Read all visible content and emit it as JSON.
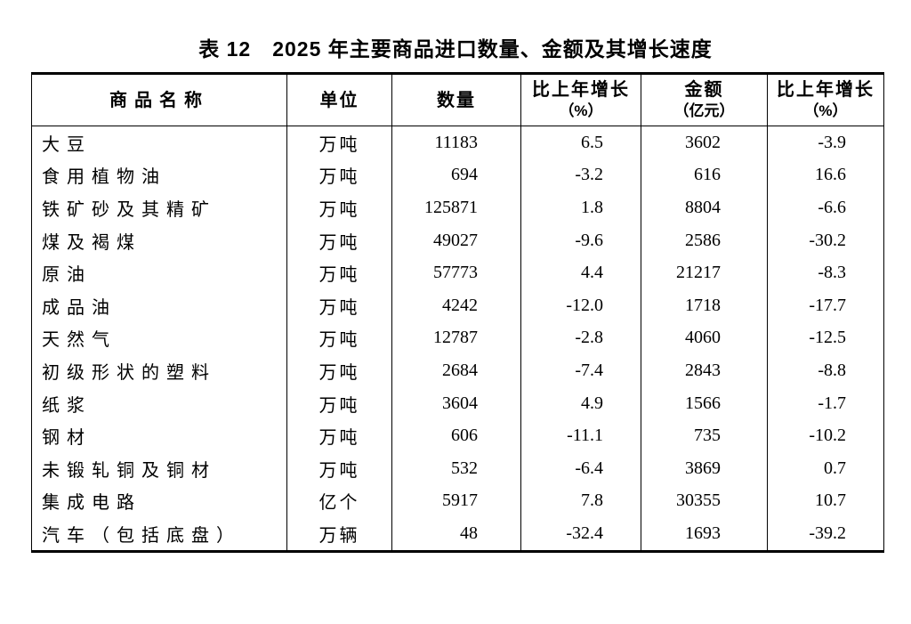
{
  "page": {
    "background_color": "#ffffff",
    "text_color": "#000000"
  },
  "table": {
    "title": "表 12　2025 年主要商品进口数量、金额及其增长速度",
    "columns": [
      {
        "label": "商品名称"
      },
      {
        "label": "单位"
      },
      {
        "label": "数量"
      },
      {
        "label": "比上年增长",
        "sub": "（%）"
      },
      {
        "label": "金额",
        "sub": "（亿元）"
      },
      {
        "label": "比上年增长",
        "sub": "（%）"
      }
    ],
    "rows": [
      {
        "name": "大豆",
        "unit": "万吨",
        "quantity": "11183",
        "quantity_growth": "6.5",
        "amount": "3602",
        "amount_growth": "-3.9"
      },
      {
        "name": "食用植物油",
        "unit": "万吨",
        "quantity": "694",
        "quantity_growth": "-3.2",
        "amount": "616",
        "amount_growth": "16.6"
      },
      {
        "name": "铁矿砂及其精矿",
        "unit": "万吨",
        "quantity": "125871",
        "quantity_growth": "1.8",
        "amount": "8804",
        "amount_growth": "-6.6"
      },
      {
        "name": "煤及褐煤",
        "unit": "万吨",
        "quantity": "49027",
        "quantity_growth": "-9.6",
        "amount": "2586",
        "amount_growth": "-30.2"
      },
      {
        "name": "原油",
        "unit": "万吨",
        "quantity": "57773",
        "quantity_growth": "4.4",
        "amount": "21217",
        "amount_growth": "-8.3"
      },
      {
        "name": "成品油",
        "unit": "万吨",
        "quantity": "4242",
        "quantity_growth": "-12.0",
        "amount": "1718",
        "amount_growth": "-17.7"
      },
      {
        "name": "天然气",
        "unit": "万吨",
        "quantity": "12787",
        "quantity_growth": "-2.8",
        "amount": "4060",
        "amount_growth": "-12.5"
      },
      {
        "name": "初级形状的塑料",
        "unit": "万吨",
        "quantity": "2684",
        "quantity_growth": "-7.4",
        "amount": "2843",
        "amount_growth": "-8.8"
      },
      {
        "name": "纸浆",
        "unit": "万吨",
        "quantity": "3604",
        "quantity_growth": "4.9",
        "amount": "1566",
        "amount_growth": "-1.7"
      },
      {
        "name": "钢材",
        "unit": "万吨",
        "quantity": "606",
        "quantity_growth": "-11.1",
        "amount": "735",
        "amount_growth": "-10.2"
      },
      {
        "name": "未锻轧铜及铜材",
        "unit": "万吨",
        "quantity": "532",
        "quantity_growth": "-6.4",
        "amount": "3869",
        "amount_growth": "0.7"
      },
      {
        "name": "集成电路",
        "unit": "亿个",
        "quantity": "5917",
        "quantity_growth": "7.8",
        "amount": "30355",
        "amount_growth": "10.7"
      },
      {
        "name": "汽车（包括底盘）",
        "unit": "万辆",
        "quantity": "48",
        "quantity_growth": "-32.4",
        "amount": "1693",
        "amount_growth": "-39.2"
      }
    ]
  },
  "chart_data": {
    "type": "table",
    "title": "表 12　2025 年主要商品进口数量、金额及其增长速度",
    "columns": [
      "商品名称",
      "单位",
      "数量",
      "比上年增长（%）",
      "金额（亿元）",
      "比上年增长（%）"
    ],
    "rows": [
      [
        "大豆",
        "万吨",
        11183,
        6.5,
        3602,
        -3.9
      ],
      [
        "食用植物油",
        "万吨",
        694,
        -3.2,
        616,
        16.6
      ],
      [
        "铁矿砂及其精矿",
        "万吨",
        125871,
        1.8,
        8804,
        -6.6
      ],
      [
        "煤及褐煤",
        "万吨",
        49027,
        -9.6,
        2586,
        -30.2
      ],
      [
        "原油",
        "万吨",
        57773,
        4.4,
        21217,
        -8.3
      ],
      [
        "成品油",
        "万吨",
        4242,
        -12.0,
        1718,
        -17.7
      ],
      [
        "天然气",
        "万吨",
        12787,
        -2.8,
        4060,
        -12.5
      ],
      [
        "初级形状的塑料",
        "万吨",
        2684,
        -7.4,
        2843,
        -8.8
      ],
      [
        "纸浆",
        "万吨",
        3604,
        4.9,
        1566,
        -1.7
      ],
      [
        "钢材",
        "万吨",
        606,
        -11.1,
        735,
        -10.2
      ],
      [
        "未锻轧铜及铜材",
        "万吨",
        532,
        -6.4,
        3869,
        0.7
      ],
      [
        "集成电路",
        "亿个",
        5917,
        7.8,
        30355,
        10.7
      ],
      [
        "汽车（包括底盘）",
        "万辆",
        48,
        -32.4,
        1693,
        -39.2
      ]
    ]
  }
}
